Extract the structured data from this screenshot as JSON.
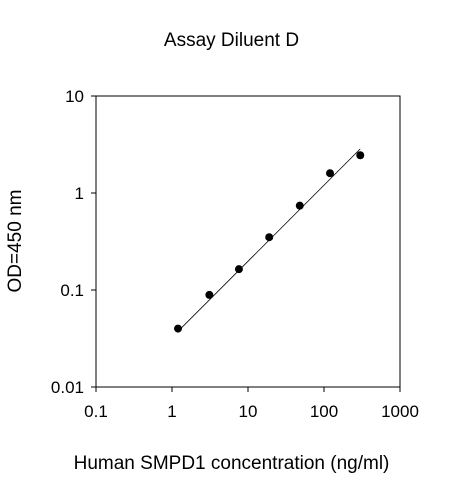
{
  "chart_data": {
    "type": "scatter",
    "title": "Assay Diluent D",
    "xlabel": "Human SMPD1 concentration (ng/ml)",
    "ylabel": "OD=450 nm",
    "x_scale": "log",
    "y_scale": "log",
    "xlim": [
      0.1,
      1000
    ],
    "ylim": [
      0.01,
      10
    ],
    "x_ticks": [
      "0.1",
      "1",
      "10",
      "100",
      "1000"
    ],
    "y_ticks": [
      "0.01",
      "0.1",
      "1",
      "10"
    ],
    "grid": false,
    "legend": "none",
    "series": [
      {
        "points": [
          {
            "x": 1.2,
            "y": 0.04
          },
          {
            "x": 3.1,
            "y": 0.089
          },
          {
            "x": 7.6,
            "y": 0.164
          },
          {
            "x": 19,
            "y": 0.35
          },
          {
            "x": 48,
            "y": 0.74
          },
          {
            "x": 120,
            "y": 1.6
          },
          {
            "x": 300,
            "y": 2.45
          }
        ],
        "trendline": {
          "x": [
            1.2,
            300
          ],
          "y": [
            0.0375,
            2.85
          ]
        }
      }
    ],
    "colors": {
      "marker": "#000000",
      "line": "#000000",
      "axis": "#000000"
    }
  }
}
